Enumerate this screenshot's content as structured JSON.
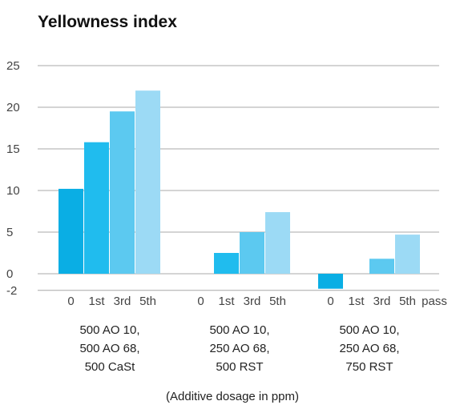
{
  "chart_data": {
    "type": "bar",
    "title": "Yellowness index",
    "xlabel": "(Additive dosage in ppm)",
    "ylabel": "",
    "ylim": [
      -2,
      25
    ],
    "yticks": [
      -2,
      0,
      5,
      10,
      15,
      20,
      25
    ],
    "grid": true,
    "categories": [
      "0",
      "1st",
      "3rd",
      "5th"
    ],
    "groups": [
      {
        "label_lines": [
          "500 AO 10,",
          "500 AO 68,",
          "500 CaSt"
        ],
        "values": [
          10.2,
          15.8,
          19.5,
          22.0
        ]
      },
      {
        "label_lines": [
          "500 AO 10,",
          "250 AO 68,",
          "500 RST"
        ],
        "values": [
          0,
          2.5,
          5.0,
          7.4
        ]
      },
      {
        "label_lines": [
          "500 AO 10,",
          "250 AO 68,",
          "750 RST"
        ],
        "values": [
          -1.8,
          0,
          1.8,
          4.7
        ]
      }
    ],
    "extra_tick": "pass",
    "colors": [
      "#0aaee4",
      "#20bcee",
      "#5cc9f0",
      "#9cdaf5"
    ]
  }
}
